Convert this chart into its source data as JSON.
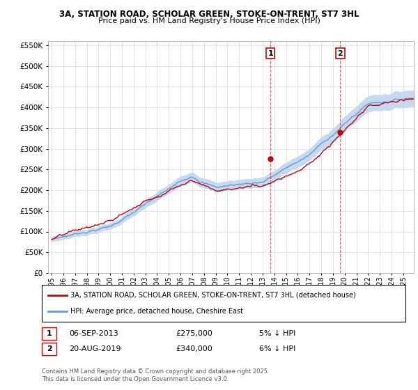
{
  "title": "3A, STATION ROAD, SCHOLAR GREEN, STOKE-ON-TRENT, ST7 3HL",
  "subtitle": "Price paid vs. HM Land Registry's House Price Index (HPI)",
  "legend_label_property": "3A, STATION ROAD, SCHOLAR GREEN, STOKE-ON-TRENT, ST7 3HL (detached house)",
  "legend_label_hpi": "HPI: Average price, detached house, Cheshire East",
  "transaction1_date": "06-SEP-2013",
  "transaction1_price": "£275,000",
  "transaction1_hpi": "5% ↓ HPI",
  "transaction2_date": "20-AUG-2019",
  "transaction2_price": "£340,000",
  "transaction2_hpi": "6% ↓ HPI",
  "footnote": "Contains HM Land Registry data © Crown copyright and database right 2025.\nThis data is licensed under the Open Government Licence v3.0.",
  "property_color": "#cc0000",
  "hpi_color": "#6699cc",
  "hpi_fill_color": "#c5d9f1",
  "background_color": "#ffffff",
  "grid_color": "#cccccc",
  "vline_color": "#cc0000",
  "ylim": [
    0,
    560000
  ],
  "yticks": [
    0,
    50000,
    100000,
    150000,
    200000,
    250000,
    300000,
    350000,
    400000,
    450000,
    500000,
    550000
  ],
  "transaction1_x": 2013.67,
  "transaction1_y": 275000,
  "transaction2_x": 2019.63,
  "transaction2_y": 340000,
  "xmin": 1994.7,
  "xmax": 2025.9
}
